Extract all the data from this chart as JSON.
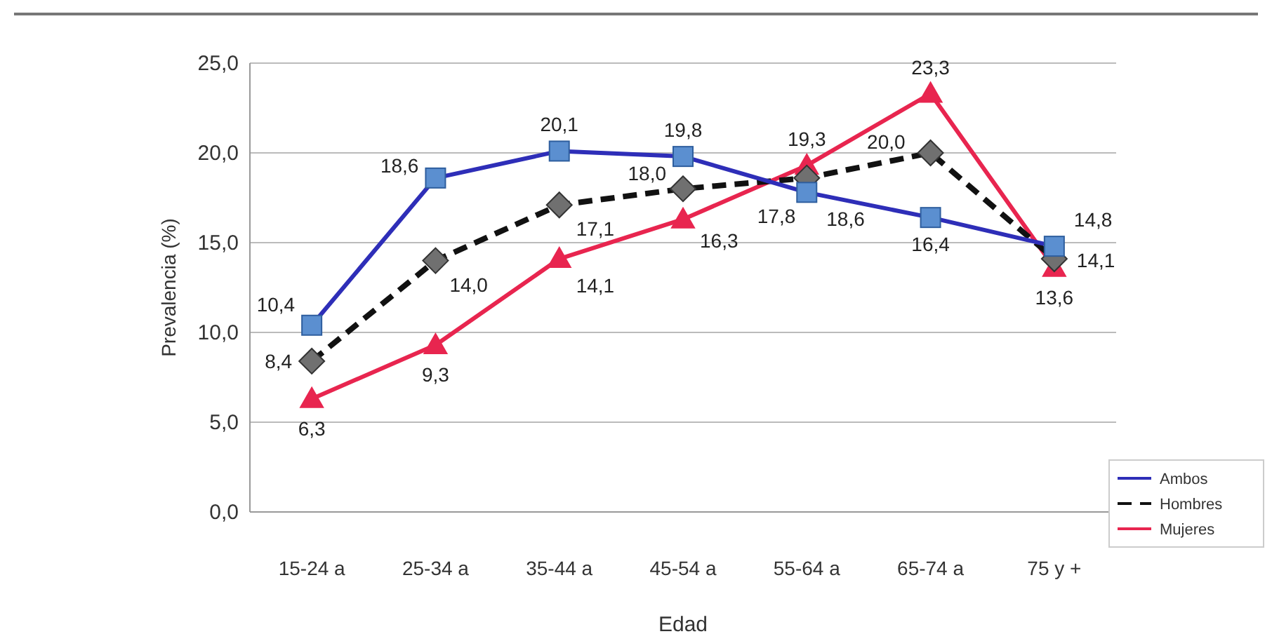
{
  "chart_data": {
    "type": "line",
    "xlabel": "Edad",
    "ylabel": "Prevalencia (%)",
    "categories": [
      "15-24 a",
      "25-34 a",
      "35-44 a",
      "45-54 a",
      "55-64 a",
      "65-74 a",
      "75 y +"
    ],
    "ylim": [
      0,
      25
    ],
    "yticks": [
      {
        "value": 0,
        "label": "0,0"
      },
      {
        "value": 5,
        "label": "5,0"
      },
      {
        "value": 10,
        "label": "10,0"
      },
      {
        "value": 15,
        "label": "15,0"
      },
      {
        "value": 20,
        "label": "20,0"
      },
      {
        "value": 25,
        "label": "25,0"
      }
    ],
    "grid": "y",
    "legend": "bottom right",
    "series": [
      {
        "name": "Ambos",
        "color": "#2e2eb8",
        "marker": "square",
        "line_style": "solid",
        "values": [
          10.4,
          18.6,
          20.1,
          19.8,
          17.8,
          16.4,
          14.8
        ],
        "value_labels": [
          "10,4",
          "18,6",
          "20,1",
          "19,8",
          "17,8",
          "16,4",
          "14,8"
        ]
      },
      {
        "name": "Hombres",
        "color": "#111111",
        "marker": "diamond",
        "line_style": "dashed",
        "values": [
          8.4,
          14.0,
          17.1,
          18.0,
          18.6,
          20.0,
          14.1
        ],
        "value_labels": [
          "8,4",
          "14,0",
          "17,1",
          "18,0",
          "18,6",
          "20,0",
          "14,1"
        ]
      },
      {
        "name": "Mujeres",
        "color": "#e8254f",
        "marker": "triangle",
        "line_style": "solid",
        "values": [
          6.3,
          9.3,
          14.1,
          16.3,
          19.3,
          23.3,
          13.6
        ],
        "value_labels": [
          "6,3",
          "9,3",
          "14,1",
          "16,3",
          "19,3",
          "23,3",
          "13,6"
        ]
      }
    ]
  }
}
